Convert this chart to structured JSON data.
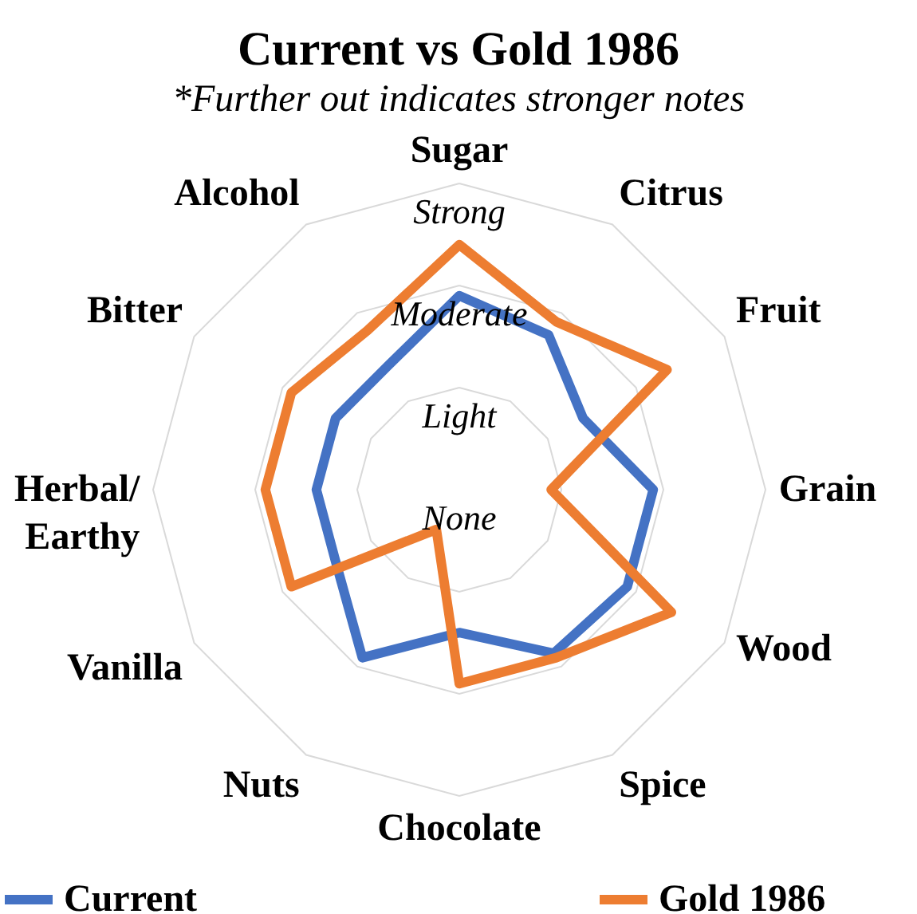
{
  "chart_data": {
    "type": "radar",
    "title": "Current vs Gold 1986",
    "subtitle": "*Further out indicates stronger notes",
    "categories": [
      "Sugar",
      "Citrus",
      "Fruit",
      "Grain",
      "Wood",
      "Spice",
      "Chocolate",
      "Nuts",
      "Vanilla",
      "Herbal/Earthy",
      "Bitter",
      "Alcohol"
    ],
    "ylim": [
      0,
      3
    ],
    "yticks": [
      {
        "value": 0,
        "label": "None"
      },
      {
        "value": 1,
        "label": "Light"
      },
      {
        "value": 2,
        "label": "Moderate"
      },
      {
        "value": 3,
        "label": "Strong"
      }
    ],
    "grid": true,
    "legend": "bottom",
    "line_style": "solid",
    "series": [
      {
        "name": "Current",
        "color": "#4472c4",
        "values": [
          1.9,
          1.75,
          1.4,
          1.9,
          1.9,
          1.85,
          1.4,
          1.9,
          1.4,
          1.4,
          1.4,
          1.4
        ]
      },
      {
        "name": "Gold 1986",
        "color": "#ed7d31",
        "values": [
          2.4,
          1.9,
          2.35,
          0.9,
          2.4,
          1.9,
          1.9,
          0.45,
          1.9,
          1.9,
          1.9,
          1.8
        ]
      }
    ]
  }
}
